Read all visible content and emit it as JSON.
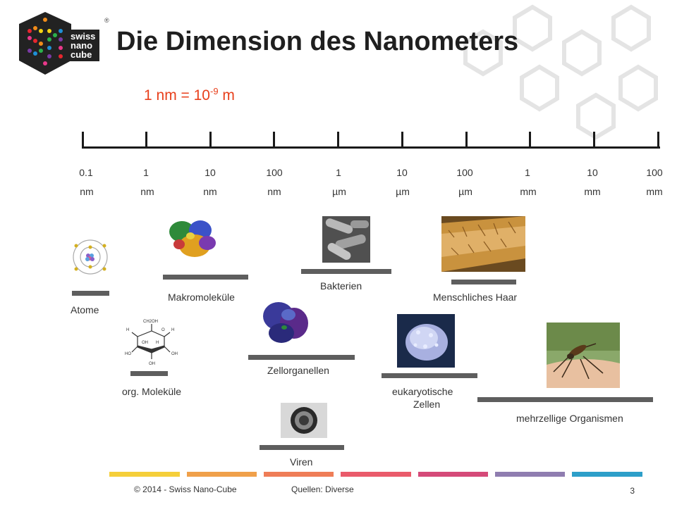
{
  "logo": {
    "line1": "swiss",
    "line2": "nano",
    "line3": "cube",
    "mark": "®",
    "colors": [
      "#e6262e",
      "#f28c1a",
      "#f5d313",
      "#2bb24c",
      "#1f8fd6",
      "#7b3aa6",
      "#e8388a"
    ]
  },
  "title": "Die Dimension des Nanometers",
  "formula": {
    "base": "1 nm = 10",
    "exponent": "-9",
    "unit": " m"
  },
  "scale": {
    "ticks": [
      {
        "num": "0.1",
        "unit": "nm"
      },
      {
        "num": "1",
        "unit": "nm"
      },
      {
        "num": "10",
        "unit": "nm"
      },
      {
        "num": "100",
        "unit": "nm"
      },
      {
        "num": "1",
        "unit": "µm"
      },
      {
        "num": "10",
        "unit": "µm"
      },
      {
        "num": "100",
        "unit": "µm"
      },
      {
        "num": "1",
        "unit": "mm"
      },
      {
        "num": "10",
        "unit": "mm"
      },
      {
        "num": "100",
        "unit": "mm"
      }
    ]
  },
  "items": {
    "atome": "Atome",
    "makromolekuele": "Makromoleküle",
    "bakterien": "Bakterien",
    "haar": "Menschliches Haar",
    "org_molekuele": "org. Moleküle",
    "zellorganellen": "Zellorganellen",
    "eukaryotische_1": "eukaryotische",
    "eukaryotische_2": "Zellen",
    "organismen": "mehrzellige Organismen",
    "viren": "Viren"
  },
  "footer": {
    "copyright": "© 2014  -  Swiss Nano-Cube",
    "sources": "Quellen:  Diverse",
    "page": "3",
    "colors": [
      "#f5cf3a",
      "#f0a04a",
      "#ef7d57",
      "#ea5b6b",
      "#d54a79",
      "#8f7db0",
      "#2d9fc9"
    ]
  }
}
